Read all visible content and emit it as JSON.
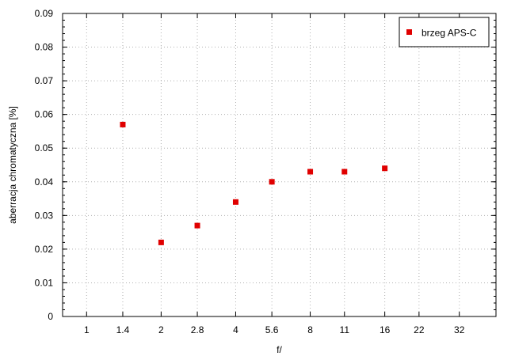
{
  "chart_data": {
    "type": "scatter",
    "xlabel": "f/",
    "ylabel": "aberracja chromatyczna [%]",
    "x_scale": "log2",
    "x_ticks": [
      1,
      1.4,
      2,
      2.8,
      4,
      5.6,
      8,
      11,
      16,
      22,
      32
    ],
    "xlim": [
      0.8,
      45
    ],
    "ylim": [
      0,
      0.09
    ],
    "y_ticks": [
      0,
      0.01,
      0.02,
      0.03,
      0.04,
      0.05,
      0.06,
      0.07,
      0.08,
      0.09
    ],
    "grid": true,
    "legend_position": "top-right",
    "series": [
      {
        "name": "brzeg APS-C",
        "color": "#e00000",
        "marker": "square",
        "points": [
          {
            "x": 1.4,
            "y": 0.057
          },
          {
            "x": 2,
            "y": 0.022
          },
          {
            "x": 2.8,
            "y": 0.027
          },
          {
            "x": 4,
            "y": 0.034
          },
          {
            "x": 5.6,
            "y": 0.04
          },
          {
            "x": 8,
            "y": 0.043
          },
          {
            "x": 11,
            "y": 0.043
          },
          {
            "x": 16,
            "y": 0.044
          }
        ]
      }
    ]
  }
}
